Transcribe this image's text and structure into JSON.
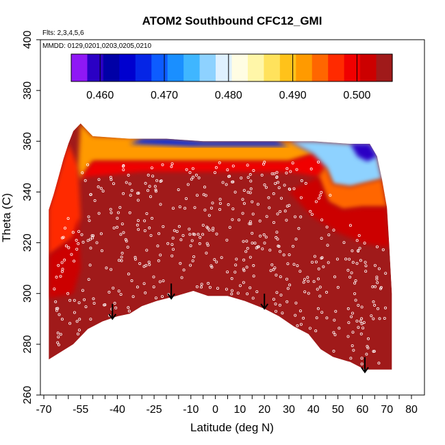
{
  "chart_data": {
    "type": "heatmap",
    "title": "ATOM2 Southbound CFC12_GMI",
    "xlabel": "Latitude (deg N)",
    "ylabel": "Theta (C)",
    "annotations": [
      "Flts: 2,3,4,5,6",
      "MMDD: 0129,0201,0203,0205,0210"
    ],
    "xlim": [
      -70,
      80
    ],
    "ylim": [
      260,
      400
    ],
    "x_tick_labels": [
      "-70",
      "-55",
      "-40",
      "-25",
      "-10",
      "0",
      "10",
      "20",
      "30",
      "40",
      "50",
      "60",
      "70",
      "80"
    ],
    "x_tick_values": [
      -70,
      -55,
      -40,
      -25,
      -10,
      0,
      10,
      20,
      30,
      40,
      50,
      60,
      70,
      80
    ],
    "y_ticks": [
      260,
      280,
      300,
      320,
      340,
      360,
      380,
      400
    ],
    "colorbar": {
      "min": 0.4555,
      "max": 0.5055,
      "tick_values": [
        0.46,
        0.47,
        0.48,
        0.49,
        0.5
      ],
      "tick_labels": [
        "0.460",
        "0.470",
        "0.480",
        "0.490",
        "0.500"
      ],
      "colors": [
        "#8f18f5",
        "#2a00c4",
        "#0000a6",
        "#0000cf",
        "#0525e6",
        "#0d5cff",
        "#1a8fff",
        "#3fb6ff",
        "#8ed2ff",
        "#dff1ff",
        "#fffde3",
        "#fff6a8",
        "#ffe25c",
        "#ffc21a",
        "#ff9a00",
        "#ff6600",
        "#ff2a00",
        "#f00000",
        "#cc0000",
        "#a01a1a"
      ]
    },
    "surface": {
      "lower_boundary": [
        [
          -68,
          274
        ],
        [
          -58,
          280
        ],
        [
          -52,
          286
        ],
        [
          -46,
          289
        ],
        [
          -40,
          291
        ],
        [
          -35,
          292
        ],
        [
          -30,
          295
        ],
        [
          -24,
          297
        ],
        [
          -16,
          299
        ],
        [
          -9,
          301
        ],
        [
          -3,
          299
        ],
        [
          5,
          299
        ],
        [
          12,
          297
        ],
        [
          20,
          294
        ],
        [
          26,
          291
        ],
        [
          32,
          287
        ],
        [
          38,
          284
        ],
        [
          43,
          278
        ],
        [
          48,
          275
        ],
        [
          55,
          273
        ],
        [
          61,
          270
        ],
        [
          72,
          270
        ]
      ],
      "upper_boundary": [
        [
          -68,
          333
        ],
        [
          -66,
          339
        ],
        [
          -64,
          346
        ],
        [
          -62,
          353
        ],
        [
          -60,
          359
        ],
        [
          -58,
          364
        ],
        [
          -55,
          367
        ],
        [
          -50,
          362
        ],
        [
          -35,
          361
        ],
        [
          -20,
          361
        ],
        [
          -5,
          360
        ],
        [
          10,
          360
        ],
        [
          25,
          360
        ],
        [
          40,
          360
        ],
        [
          55,
          359
        ],
        [
          63,
          359
        ],
        [
          66,
          354
        ],
        [
          68,
          345
        ],
        [
          70,
          334
        ],
        [
          71,
          318
        ],
        [
          72,
          300
        ],
        [
          72,
          270
        ]
      ],
      "background_value": 0.5045,
      "regions": [
        {
          "polygon": [
            [
              -68,
              315
            ],
            [
              -58,
              322
            ],
            [
              -55,
              330
            ],
            [
              -56,
              350
            ],
            [
              -60,
              359
            ],
            [
              -64,
              346
            ],
            [
              -68,
              333
            ]
          ],
          "value": 0.496
        },
        {
          "polygon": [
            [
              -68,
              298
            ],
            [
              -58,
              300
            ],
            [
              -55,
              310
            ],
            [
              -56,
              330
            ],
            [
              -58,
              322
            ],
            [
              -68,
              315
            ]
          ],
          "value": 0.501
        },
        {
          "polygon": [
            [
              -55,
              367
            ],
            [
              -50,
              362
            ],
            [
              -20,
              361
            ],
            [
              10,
              360
            ],
            [
              30,
              360
            ],
            [
              40,
              355
            ],
            [
              30,
              352
            ],
            [
              0,
              352
            ],
            [
              -30,
              352
            ],
            [
              -50,
              352
            ],
            [
              -55,
              345
            ],
            [
              -56,
              350
            ]
          ],
          "value": 0.492
        },
        {
          "polygon": [
            [
              -55,
              345
            ],
            [
              -50,
              352
            ],
            [
              -30,
              352
            ],
            [
              0,
              352
            ],
            [
              30,
              352
            ],
            [
              40,
              355
            ],
            [
              45,
              350
            ],
            [
              42,
              346
            ],
            [
              30,
              348
            ],
            [
              0,
              348
            ],
            [
              -30,
              348
            ],
            [
              -52,
              346
            ]
          ],
          "value": 0.5
        },
        {
          "polygon": [
            [
              40,
              355
            ],
            [
              30,
              360
            ],
            [
              40,
              360
            ],
            [
              55,
              359
            ],
            [
              63,
              359
            ],
            [
              66,
              354
            ],
            [
              68,
              345
            ],
            [
              55,
              342
            ],
            [
              48,
              343
            ],
            [
              45,
              350
            ]
          ],
          "value": 0.478
        },
        {
          "polygon": [
            [
              48,
              343
            ],
            [
              55,
              342
            ],
            [
              68,
              345
            ],
            [
              70,
              334
            ],
            [
              60,
              334
            ],
            [
              52,
              333
            ],
            [
              46,
              336
            ],
            [
              42,
              346
            ],
            [
              45,
              350
            ]
          ],
          "value": 0.493
        },
        {
          "polygon": [
            [
              42,
              346
            ],
            [
              46,
              336
            ],
            [
              52,
              333
            ],
            [
              60,
              334
            ],
            [
              70,
              334
            ],
            [
              71,
              318
            ],
            [
              60,
              320
            ],
            [
              50,
              324
            ],
            [
              40,
              330
            ],
            [
              30,
              340
            ]
          ],
          "value": 0.501
        },
        {
          "polygon": [
            [
              -30,
              361
            ],
            [
              -20,
              361
            ],
            [
              -5,
              360
            ],
            [
              10,
              360
            ],
            [
              25,
              360
            ],
            [
              30,
              358
            ],
            [
              -10,
              358
            ],
            [
              -35,
              359
            ]
          ],
          "value": 0.466
        },
        {
          "polygon": [
            [
              55,
              359
            ],
            [
              63,
              359
            ],
            [
              66,
              354
            ],
            [
              62,
              352
            ],
            [
              58,
              354
            ]
          ],
          "value": 0.46
        }
      ],
      "sample_points_note": "white open circles mark aircraft sample locations"
    },
    "markers": [
      {
        "x": -42,
        "y": 290
      },
      {
        "x": -18,
        "y": 298
      },
      {
        "x": 20,
        "y": 294
      },
      {
        "x": 61,
        "y": 269
      }
    ]
  }
}
